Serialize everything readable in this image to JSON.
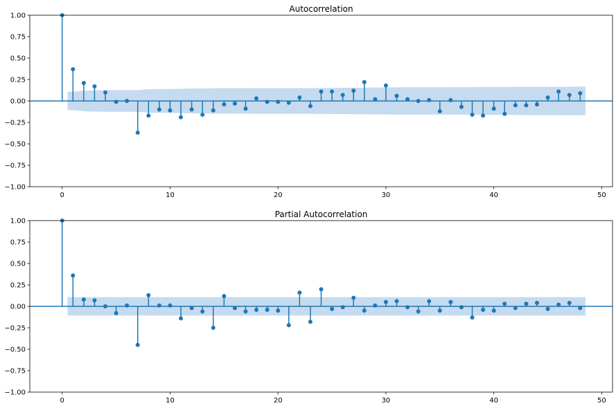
{
  "chart_data": [
    {
      "type": "stem",
      "title": "Autocorrelation",
      "xlim": [
        -3,
        51
      ],
      "ylim": [
        -1,
        1
      ],
      "x_ticks": [
        0,
        10,
        20,
        30,
        40,
        50
      ],
      "y_ticks": [
        -1.0,
        -0.75,
        -0.5,
        -0.25,
        0.0,
        0.25,
        0.5,
        0.75,
        1.0
      ],
      "x_tick_labels": [
        "0",
        "10",
        "20",
        "30",
        "40",
        "50"
      ],
      "y_tick_labels": [
        "−1.00",
        "−0.75",
        "−0.50",
        "−0.25",
        "0.00",
        "0.25",
        "0.50",
        "0.75",
        "1.00"
      ],
      "lags": [
        0,
        1,
        2,
        3,
        4,
        5,
        6,
        7,
        8,
        9,
        10,
        11,
        12,
        13,
        14,
        15,
        16,
        17,
        18,
        19,
        20,
        21,
        22,
        23,
        24,
        25,
        26,
        27,
        28,
        29,
        30,
        31,
        32,
        33,
        34,
        35,
        36,
        37,
        38,
        39,
        40,
        41,
        42,
        43,
        44,
        45,
        46,
        47,
        48
      ],
      "values": [
        1.0,
        0.37,
        0.21,
        0.17,
        0.1,
        -0.01,
        0.0,
        -0.37,
        -0.17,
        -0.1,
        -0.11,
        -0.19,
        -0.1,
        -0.16,
        -0.11,
        -0.04,
        -0.03,
        -0.09,
        0.03,
        -0.01,
        -0.01,
        -0.02,
        0.04,
        -0.06,
        0.11,
        0.11,
        0.07,
        0.12,
        0.22,
        0.02,
        0.18,
        0.06,
        0.02,
        0.0,
        0.01,
        -0.12,
        0.01,
        -0.07,
        -0.16,
        -0.17,
        -0.09,
        -0.15,
        -0.05,
        -0.05,
        -0.04,
        0.04,
        0.11,
        0.07,
        0.09
      ],
      "confint_lags": [
        0.5,
        1,
        2,
        3,
        4,
        5,
        6,
        7,
        8,
        9,
        10,
        11,
        12,
        13,
        14,
        15,
        16,
        17,
        18,
        19,
        20,
        21,
        22,
        23,
        24,
        25,
        26,
        27,
        28,
        29,
        30,
        31,
        32,
        33,
        34,
        35,
        36,
        37,
        38,
        39,
        40,
        41,
        42,
        43,
        44,
        45,
        46,
        47,
        48,
        48.5
      ],
      "confint_upper": [
        0.108,
        0.108,
        0.12,
        0.124,
        0.126,
        0.127,
        0.127,
        0.127,
        0.137,
        0.139,
        0.14,
        0.141,
        0.145,
        0.146,
        0.148,
        0.149,
        0.149,
        0.149,
        0.15,
        0.15,
        0.15,
        0.15,
        0.15,
        0.15,
        0.151,
        0.152,
        0.153,
        0.154,
        0.154,
        0.157,
        0.157,
        0.159,
        0.159,
        0.159,
        0.159,
        0.159,
        0.16,
        0.16,
        0.161,
        0.162,
        0.163,
        0.163,
        0.164,
        0.164,
        0.165,
        0.165,
        0.165,
        0.166,
        0.167,
        0.167
      ],
      "colors": {
        "stem": "#1f77b4",
        "confint": "#c6dbef",
        "zero_line": "#1f77b4"
      },
      "grid": false
    },
    {
      "type": "stem",
      "title": "Partial Autocorrelation",
      "xlim": [
        -3,
        51
      ],
      "ylim": [
        -1,
        1
      ],
      "x_ticks": [
        0,
        10,
        20,
        30,
        40,
        50
      ],
      "y_ticks": [
        -1.0,
        -0.75,
        -0.5,
        -0.25,
        0.0,
        0.25,
        0.5,
        0.75,
        1.0
      ],
      "x_tick_labels": [
        "0",
        "10",
        "20",
        "30",
        "40",
        "50"
      ],
      "y_tick_labels": [
        "−1.00",
        "−0.75",
        "−0.50",
        "−0.25",
        "0.00",
        "0.25",
        "0.50",
        "0.75",
        "1.00"
      ],
      "lags": [
        0,
        1,
        2,
        3,
        4,
        5,
        6,
        7,
        8,
        9,
        10,
        11,
        12,
        13,
        14,
        15,
        16,
        17,
        18,
        19,
        20,
        21,
        22,
        23,
        24,
        25,
        26,
        27,
        28,
        29,
        30,
        31,
        32,
        33,
        34,
        35,
        36,
        37,
        38,
        39,
        40,
        41,
        42,
        43,
        44,
        45,
        46,
        47,
        48
      ],
      "values": [
        1.0,
        0.36,
        0.08,
        0.07,
        0.0,
        -0.08,
        0.01,
        -0.45,
        0.13,
        0.01,
        0.01,
        -0.14,
        -0.02,
        -0.06,
        -0.25,
        0.12,
        -0.02,
        -0.06,
        -0.04,
        -0.04,
        -0.05,
        -0.22,
        0.16,
        -0.18,
        0.2,
        -0.03,
        -0.01,
        0.1,
        -0.05,
        0.01,
        0.05,
        0.06,
        -0.01,
        -0.06,
        0.06,
        -0.05,
        0.05,
        -0.01,
        -0.13,
        -0.04,
        -0.05,
        0.03,
        -0.02,
        0.03,
        0.04,
        -0.03,
        0.02,
        0.04,
        -0.02
      ],
      "confint_lags": [
        0.5,
        48.5
      ],
      "confint_upper": [
        0.108,
        0.108
      ],
      "colors": {
        "stem": "#1f77b4",
        "confint": "#c6dbef",
        "zero_line": "#1f77b4"
      },
      "grid": false
    }
  ]
}
